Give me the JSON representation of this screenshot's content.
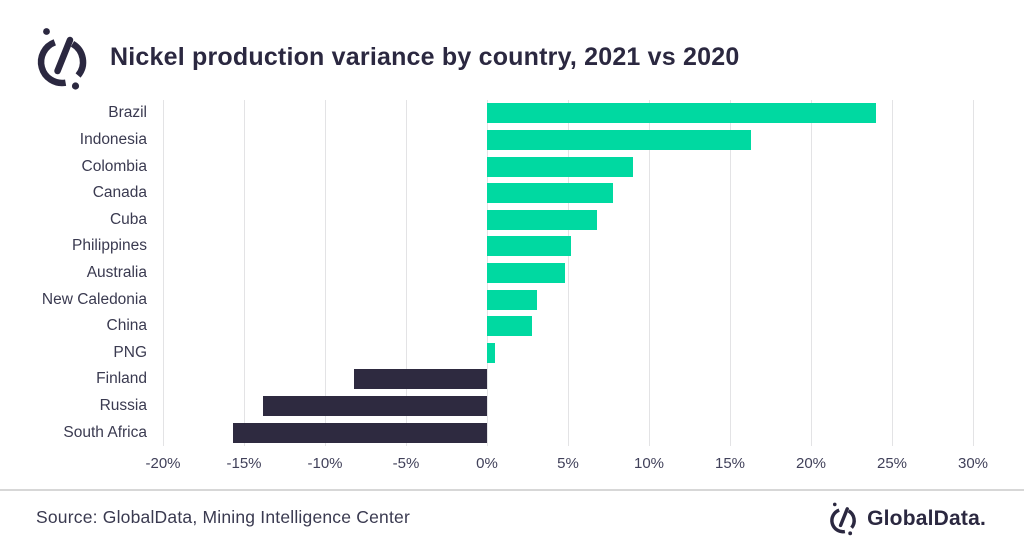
{
  "header": {
    "title": "Nickel production variance by country, 2021 vs 2020"
  },
  "chart_data": {
    "type": "bar",
    "orientation": "horizontal",
    "title": "Nickel production variance by country, 2021 vs 2020",
    "categories": [
      "Brazil",
      "Indonesia",
      "Colombia",
      "Canada",
      "Cuba",
      "Philippines",
      "Australia",
      "New Caledonia",
      "China",
      "PNG",
      "Finland",
      "Russia",
      "South Africa"
    ],
    "values": [
      24.0,
      16.3,
      9.0,
      7.8,
      6.8,
      5.2,
      4.8,
      3.1,
      2.8,
      0.5,
      -8.2,
      -13.8,
      -15.7
    ],
    "unit": "%",
    "xlabel": "",
    "ylabel": "",
    "xlim": [
      -20,
      30
    ],
    "ticks": [
      -20,
      -15,
      -10,
      -5,
      0,
      5,
      10,
      15,
      20,
      25,
      30
    ],
    "tick_suffix": "%",
    "grid": true,
    "legend": false,
    "colors": {
      "positive": "#00d9a1",
      "negative": "#2e2a40",
      "gridline": "#e3e3e5"
    }
  },
  "footer": {
    "source": "Source: GlobalData, Mining Intelligence Center",
    "brand": "GlobalData."
  },
  "icons": {
    "header_logo": "globaldata-mark",
    "footer_logo": "globaldata-mark"
  }
}
